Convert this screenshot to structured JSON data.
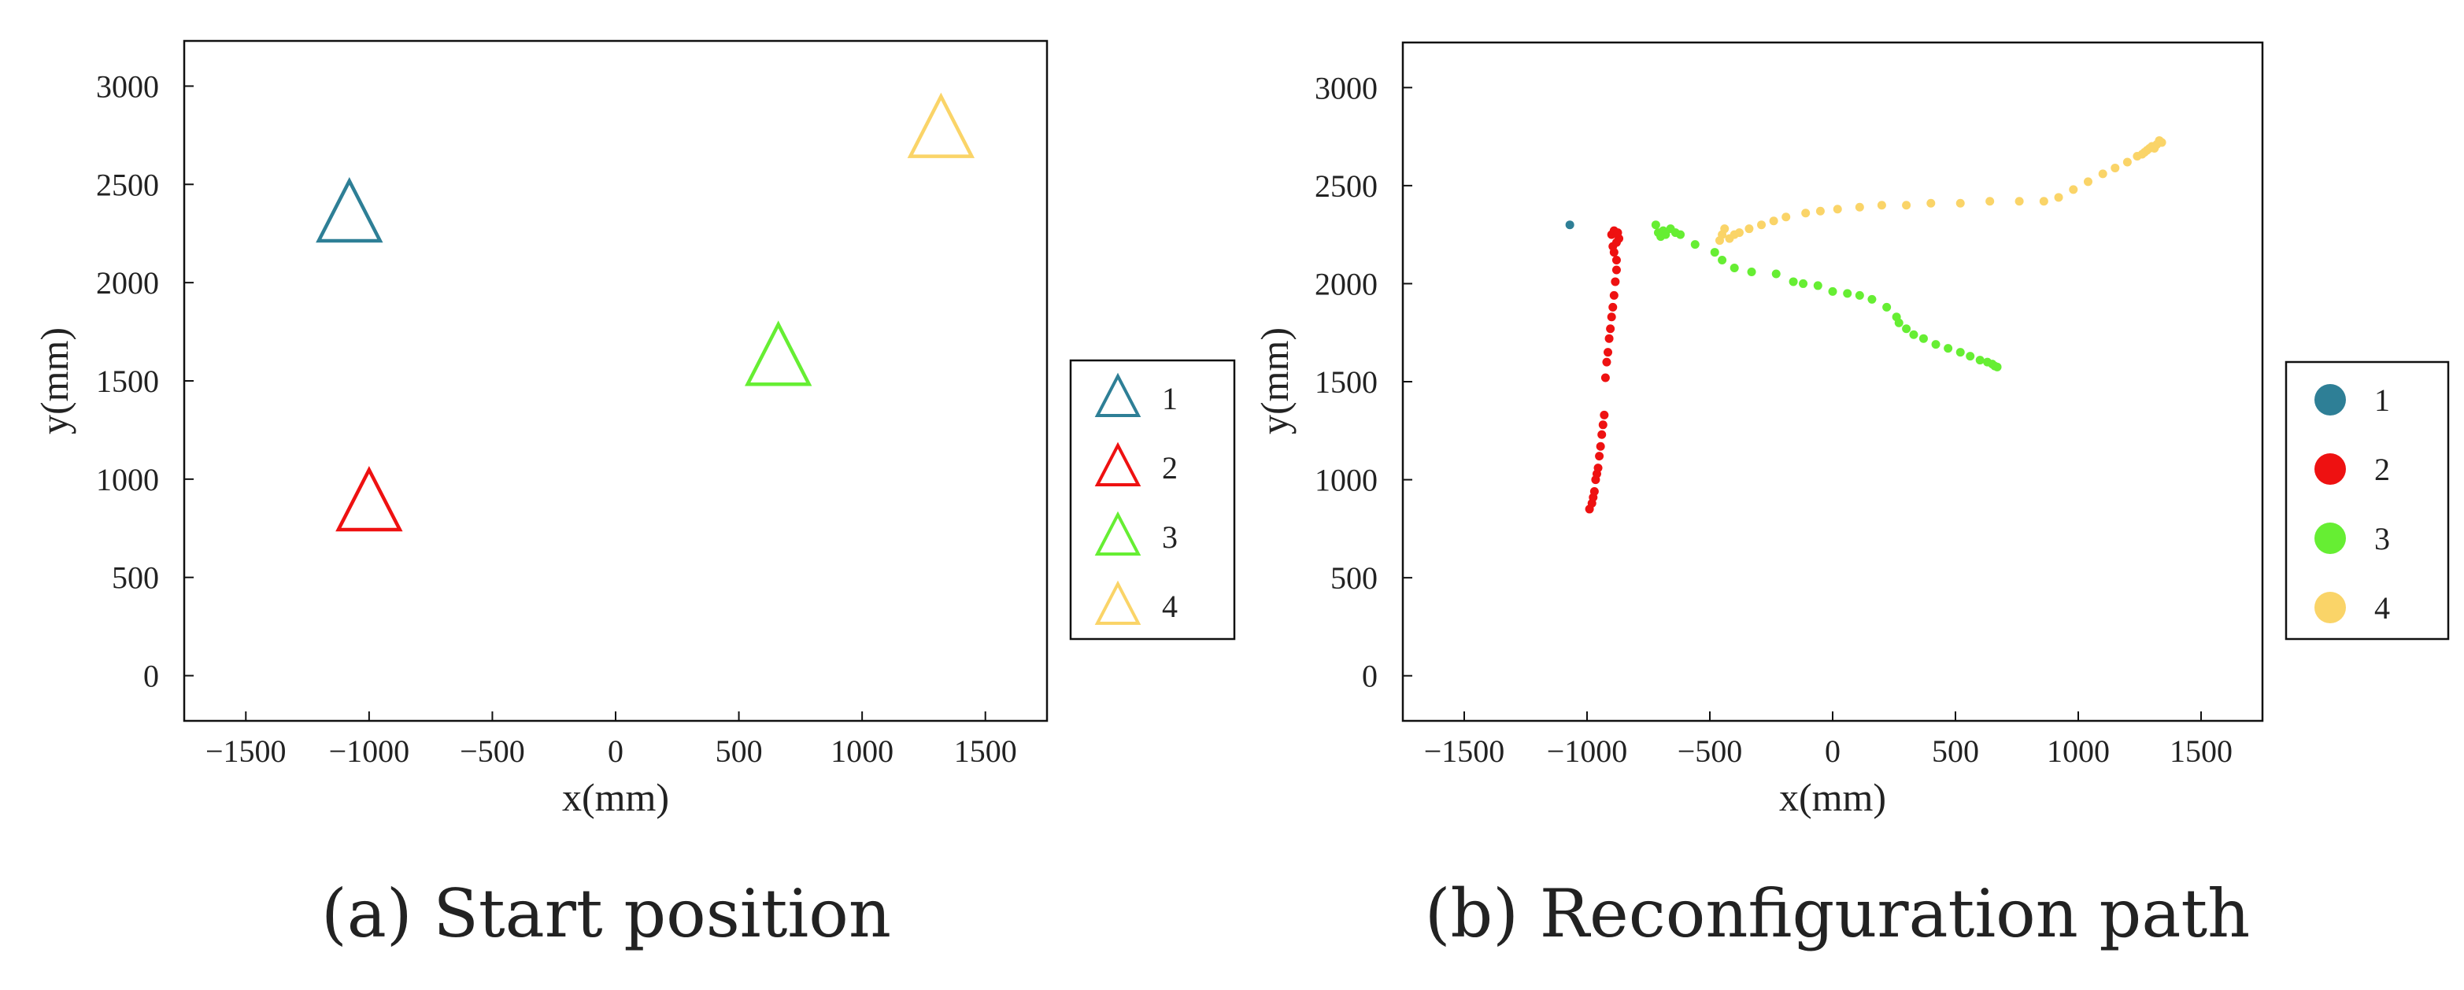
{
  "chart_data": [
    {
      "type": "scatter",
      "marker": "triangle",
      "caption": "(a) Start position",
      "xlabel": "x(mm)",
      "ylabel": "y(mm)",
      "xlim": [
        -1750,
        1750
      ],
      "ylim": [
        -230,
        3230
      ],
      "xticks": [
        -1500,
        -1000,
        -500,
        0,
        500,
        1000,
        1500
      ],
      "yticks": [
        0,
        500,
        1000,
        1500,
        2000,
        2500,
        3000
      ],
      "xtick_labels": [
        "−1500",
        "−1000",
        "−500",
        "0",
        "500",
        "1000",
        "1500"
      ],
      "ytick_labels": [
        "0",
        "500",
        "1000",
        "1500",
        "2000",
        "2500",
        "3000"
      ],
      "legend_position": "outside-right",
      "series": [
        {
          "name": "1",
          "color": "#2e7f96",
          "points": [
            [
              -1080,
              2350
            ]
          ]
        },
        {
          "name": "2",
          "color": "#ee1111",
          "points": [
            [
              -1000,
              880
            ]
          ]
        },
        {
          "name": "3",
          "color": "#66ee33",
          "points": [
            [
              660,
              1620
            ]
          ]
        },
        {
          "name": "4",
          "color": "#fad468",
          "points": [
            [
              1320,
              2780
            ]
          ]
        }
      ]
    },
    {
      "type": "scatter",
      "marker": "dot",
      "caption": "(b) Reconfiguration path",
      "xlabel": "x(mm)",
      "ylabel": "y(mm)",
      "xlim": [
        -1750,
        1750
      ],
      "ylim": [
        -230,
        3230
      ],
      "xticks": [
        -1500,
        -1000,
        -500,
        0,
        500,
        1000,
        1500
      ],
      "yticks": [
        0,
        500,
        1000,
        1500,
        2000,
        2500,
        3000
      ],
      "xtick_labels": [
        "−1500",
        "−1000",
        "−500",
        "0",
        "500",
        "1000",
        "1500"
      ],
      "ytick_labels": [
        "0",
        "500",
        "1000",
        "1500",
        "2000",
        "2500",
        "3000"
      ],
      "legend_position": "outside-right",
      "series": [
        {
          "name": "1",
          "color": "#2e7f96",
          "points": [
            [
              -1070,
              2300
            ]
          ]
        },
        {
          "name": "2",
          "color": "#ee1111",
          "points": [
            [
              -990,
              850
            ],
            [
              -980,
              880
            ],
            [
              -975,
              910
            ],
            [
              -970,
              940
            ],
            [
              -965,
              1000
            ],
            [
              -960,
              1030
            ],
            [
              -955,
              1060
            ],
            [
              -950,
              1120
            ],
            [
              -945,
              1170
            ],
            [
              -940,
              1230
            ],
            [
              -935,
              1280
            ],
            [
              -930,
              1330
            ],
            [
              -925,
              1520
            ],
            [
              -920,
              1600
            ],
            [
              -915,
              1650
            ],
            [
              -910,
              1720
            ],
            [
              -905,
              1770
            ],
            [
              -900,
              1830
            ],
            [
              -895,
              1880
            ],
            [
              -890,
              1940
            ],
            [
              -885,
              2010
            ],
            [
              -880,
              2070
            ],
            [
              -880,
              2120
            ],
            [
              -890,
              2160
            ],
            [
              -895,
              2190
            ],
            [
              -880,
              2210
            ],
            [
              -870,
              2230
            ],
            [
              -900,
              2250
            ],
            [
              -890,
              2270
            ],
            [
              -875,
              2260
            ]
          ]
        },
        {
          "name": "3",
          "color": "#66ee33",
          "points": [
            [
              -720,
              2300
            ],
            [
              -710,
              2260
            ],
            [
              -700,
              2240
            ],
            [
              -690,
              2270
            ],
            [
              -680,
              2250
            ],
            [
              -660,
              2280
            ],
            [
              -640,
              2260
            ],
            [
              -620,
              2250
            ],
            [
              -560,
              2200
            ],
            [
              -480,
              2160
            ],
            [
              -450,
              2120
            ],
            [
              -400,
              2080
            ],
            [
              -330,
              2060
            ],
            [
              -230,
              2050
            ],
            [
              -160,
              2010
            ],
            [
              -120,
              2000
            ],
            [
              -60,
              1990
            ],
            [
              0,
              1960
            ],
            [
              60,
              1950
            ],
            [
              110,
              1940
            ],
            [
              160,
              1920
            ],
            [
              220,
              1880
            ],
            [
              260,
              1830
            ],
            [
              270,
              1800
            ],
            [
              300,
              1770
            ],
            [
              330,
              1740
            ],
            [
              370,
              1720
            ],
            [
              420,
              1690
            ],
            [
              470,
              1670
            ],
            [
              520,
              1650
            ],
            [
              560,
              1630
            ],
            [
              600,
              1610
            ],
            [
              630,
              1600
            ],
            [
              650,
              1590
            ],
            [
              660,
              1580
            ],
            [
              670,
              1575
            ]
          ]
        },
        {
          "name": "4",
          "color": "#fad468",
          "points": [
            [
              -460,
              2220
            ],
            [
              -450,
              2250
            ],
            [
              -440,
              2280
            ],
            [
              -420,
              2230
            ],
            [
              -400,
              2250
            ],
            [
              -380,
              2260
            ],
            [
              -340,
              2280
            ],
            [
              -290,
              2300
            ],
            [
              -240,
              2320
            ],
            [
              -190,
              2340
            ],
            [
              -110,
              2360
            ],
            [
              -50,
              2370
            ],
            [
              20,
              2380
            ],
            [
              110,
              2390
            ],
            [
              200,
              2400
            ],
            [
              300,
              2400
            ],
            [
              400,
              2410
            ],
            [
              520,
              2410
            ],
            [
              640,
              2420
            ],
            [
              760,
              2420
            ],
            [
              860,
              2420
            ],
            [
              920,
              2440
            ],
            [
              980,
              2480
            ],
            [
              1040,
              2520
            ],
            [
              1100,
              2560
            ],
            [
              1150,
              2590
            ],
            [
              1200,
              2620
            ],
            [
              1240,
              2650
            ],
            [
              1270,
              2670
            ],
            [
              1290,
              2690
            ],
            [
              1300,
              2700
            ],
            [
              1320,
              2710
            ],
            [
              1340,
              2720
            ],
            [
              1310,
              2690
            ],
            [
              1280,
              2680
            ],
            [
              1260,
              2660
            ],
            [
              1330,
              2730
            ]
          ]
        }
      ]
    }
  ]
}
